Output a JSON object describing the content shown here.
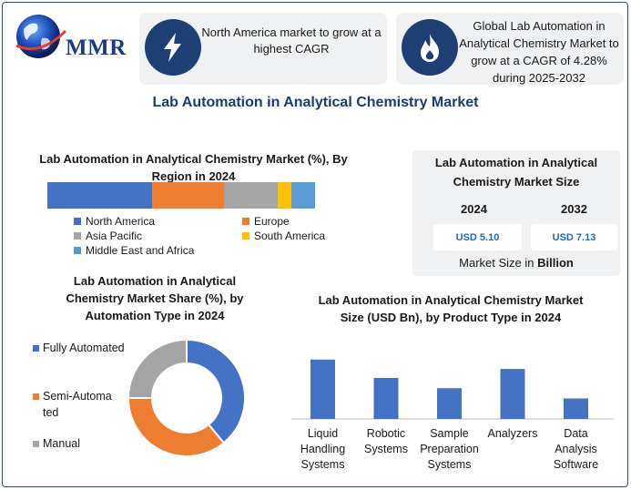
{
  "logo": {
    "text": "MMR",
    "icon": "globe-icon"
  },
  "callouts": [
    {
      "icon": "lightning-bolt-icon",
      "text": "North America market to grow at a highest CAGR"
    },
    {
      "icon": "flame-icon",
      "text": "Global Lab Automation in Analytical Chemistry Market to grow at a CAGR of 4.28% during 2025-2032"
    }
  ],
  "main_title": "Lab Automation in Analytical Chemistry Market",
  "market_size": {
    "title": "Lab Automation in Analytical Chemistry Market Size",
    "year_1": "2024",
    "year_2": "2032",
    "value_1": "USD 5.10",
    "value_2": "USD 7.13",
    "footer_prefix": "Market Size in",
    "footer_bold": "Billion"
  },
  "colors": {
    "north_america": "#4472c4",
    "europe": "#ed7d31",
    "asia_pacific": "#a5a5a5",
    "south_america": "#ffc000",
    "middle_east_africa": "#5b9bd5",
    "badge": "#1e3f73",
    "title_blue": "#1e3a6e"
  },
  "chart_data": [
    {
      "type": "bar",
      "orientation": "horizontal-stacked",
      "title": "Lab Automation in Analytical Chemistry Market (%), By Region in 2024",
      "series": [
        {
          "name": "North America",
          "value": 39,
          "color": "#4472c4"
        },
        {
          "name": "Europe",
          "value": 27,
          "color": "#ed7d31"
        },
        {
          "name": "Asia Pacific",
          "value": 20,
          "color": "#a5a5a5"
        },
        {
          "name": "South America",
          "value": 5,
          "color": "#ffc000"
        },
        {
          "name": "Middle East and Africa",
          "value": 9,
          "color": "#5b9bd5"
        }
      ],
      "legend_position": "bottom"
    },
    {
      "type": "pie",
      "variant": "donut",
      "title": "Lab Automation in Analytical Chemistry Market Share (%), by Automation Type in 2024",
      "slices": [
        {
          "name": "Fully Automated",
          "value": 39,
          "color": "#4472c4"
        },
        {
          "name": "Semi-Automa ted",
          "value": 36,
          "color": "#ed7d31"
        },
        {
          "name": "Manual",
          "value": 25,
          "color": "#a5a5a5"
        }
      ],
      "legend_position": "left"
    },
    {
      "type": "bar",
      "title": "Lab Automation in Analytical Chemistry Market Size (USD Bn), by Product Type in 2024",
      "categories": [
        "Liquid Handling Systems",
        "Robotic Systems",
        "Sample Preparation Systems",
        "Analyzers",
        "Data Analysis Software"
      ],
      "category_lines": [
        [
          "Liquid",
          "Handling",
          "Systems"
        ],
        [
          "Robotic",
          "Systems"
        ],
        [
          "Sample",
          "Preparation",
          "Systems"
        ],
        [
          "Analyzers"
        ],
        [
          "Data",
          "Analysis",
          "Software"
        ]
      ],
      "values": [
        1.45,
        1.0,
        0.75,
        1.22,
        0.5
      ],
      "ylim": [
        0,
        1.6
      ],
      "color": "#4472c4",
      "grid": false
    }
  ]
}
